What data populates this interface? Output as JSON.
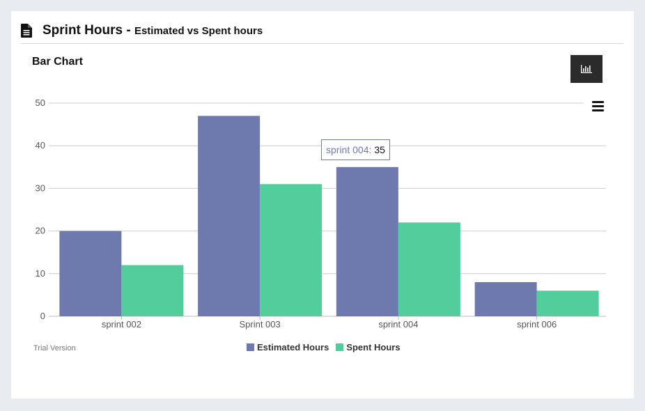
{
  "header": {
    "title": "Sprint Hours",
    "separator": " - ",
    "subtitle": "Estimated vs Spent hours",
    "icon": "document-icon"
  },
  "chart_panel": {
    "heading": "Bar Chart",
    "chart_type_button_icon": "bar-chart-icon",
    "menu_icon": "hamburger-menu-icon"
  },
  "tooltip": {
    "label": "sprint 004:",
    "value": "35"
  },
  "footer": {
    "trial_text": "Trial Version"
  },
  "colors": {
    "estimated": "#6e79ad",
    "spent": "#52ce9c",
    "button_bg": "#2b2b2b"
  },
  "chart_data": {
    "type": "bar",
    "categories": [
      "sprint 002",
      "Sprint 003",
      "sprint 004",
      "sprint 006"
    ],
    "series": [
      {
        "name": "Estimated Hours",
        "values": [
          20,
          47,
          35,
          8
        ],
        "color": "#6e79ad"
      },
      {
        "name": "Spent Hours",
        "values": [
          12,
          31,
          22,
          6
        ],
        "color": "#52ce9c"
      }
    ],
    "ylim": [
      0,
      50
    ],
    "yticks": [
      0,
      10,
      20,
      30,
      40,
      50
    ],
    "grid": true,
    "legend_position": "bottom-center"
  }
}
